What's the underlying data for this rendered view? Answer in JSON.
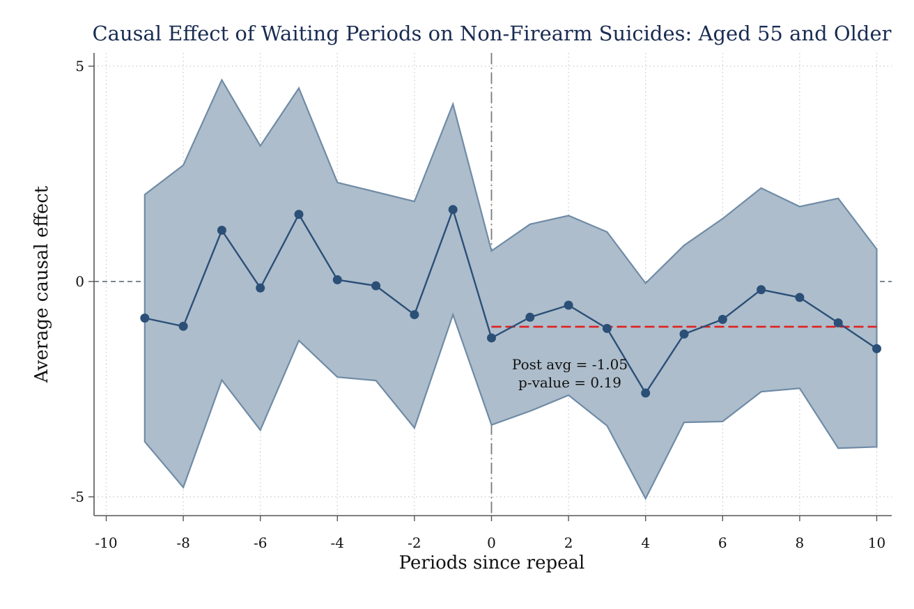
{
  "chart_data": {
    "type": "line",
    "title": "Causal Effect of Waiting Periods on Non-Firearm Suicides: Aged 55 and Older",
    "xlabel": "Periods since repeal",
    "ylabel": "Average causal effect",
    "xlim": [
      -10,
      10
    ],
    "ylim": [
      -5,
      5
    ],
    "x_ticks": [
      -10,
      -8,
      -6,
      -4,
      -2,
      0,
      2,
      4,
      6,
      8,
      10
    ],
    "y_ticks": [
      -5,
      0,
      5
    ],
    "x_tick_labels": [
      "-10",
      "-8",
      "-6",
      "-4",
      "-2",
      "0",
      "2",
      "4",
      "6",
      "8",
      "10"
    ],
    "y_tick_labels": [
      "-5",
      "0",
      "5"
    ],
    "grid": true,
    "series": [
      {
        "x": [
          -9,
          -8,
          -7,
          -6,
          -5,
          -4,
          -3,
          -2,
          -1,
          0,
          1,
          2,
          3,
          4,
          5,
          6,
          7,
          8,
          9,
          10
        ],
        "values": [
          -0.85,
          -1.04,
          1.19,
          -0.15,
          1.56,
          0.04,
          -0.1,
          -0.77,
          1.67,
          -1.31,
          -0.83,
          -0.55,
          -1.09,
          -2.59,
          -1.22,
          -0.88,
          -0.19,
          -0.37,
          -0.96,
          -1.56
        ],
        "upper": [
          2.02,
          2.7,
          4.68,
          3.15,
          4.49,
          2.3,
          2.08,
          1.86,
          4.12,
          0.71,
          1.33,
          1.53,
          1.15,
          -0.04,
          0.84,
          1.46,
          2.17,
          1.74,
          1.93,
          0.75
        ],
        "lower": [
          -3.72,
          -4.78,
          -2.29,
          -3.45,
          -1.37,
          -2.22,
          -2.3,
          -3.4,
          -0.77,
          -3.33,
          -3.01,
          -2.64,
          -3.35,
          -5.04,
          -3.27,
          -3.25,
          -2.56,
          -2.48,
          -3.87,
          -3.84
        ]
      }
    ],
    "reference_lines": {
      "zero_line_y": 0,
      "treatment_line_x": 0,
      "post_average_y": -1.05
    },
    "annotation": {
      "line1": "Post avg = -1.05",
      "line2": "p-value = 0.19"
    },
    "colors": {
      "line": "#2b4f77",
      "band_fill": "#adbdcb",
      "band_edge": "#6f8ba6",
      "post_avg_line": "#e02020",
      "title": "#1a2c52"
    }
  }
}
